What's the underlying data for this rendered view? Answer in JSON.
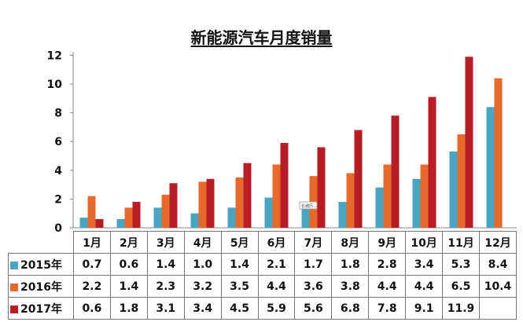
{
  "chart_data": {
    "type": "bar",
    "title": "新能源汽车月度销量",
    "categories": [
      "1月",
      "2月",
      "3月",
      "4月",
      "5月",
      "6月",
      "7月",
      "8月",
      "9月",
      "10月",
      "11月",
      "12月"
    ],
    "series": [
      {
        "name": "2015年",
        "color": "#4aa5c0",
        "values": [
          "0.7",
          "0.6",
          "1.4",
          "1.0",
          "1.4",
          "2.1",
          "1.7",
          "1.8",
          "2.8",
          "3.4",
          "5.3",
          "8.4"
        ]
      },
      {
        "name": "2016年",
        "color": "#e8692c",
        "values": [
          "2.2",
          "1.4",
          "2.3",
          "3.2",
          "3.5",
          "4.4",
          "3.6",
          "3.8",
          "4.4",
          "4.4",
          "6.5",
          "10.4"
        ]
      },
      {
        "name": "2017年",
        "color": "#b81c25",
        "values": [
          "0.6",
          "1.8",
          "3.1",
          "3.4",
          "4.5",
          "5.9",
          "5.6",
          "6.8",
          "7.8",
          "9.1",
          "11.9",
          ""
        ]
      }
    ],
    "ylim": [
      0,
      12
    ],
    "yticks": [
      "0",
      "2",
      "4",
      "6",
      "8",
      "10",
      "12"
    ],
    "grid": false,
    "legend": "table-left",
    "annotation": "长城历..."
  }
}
